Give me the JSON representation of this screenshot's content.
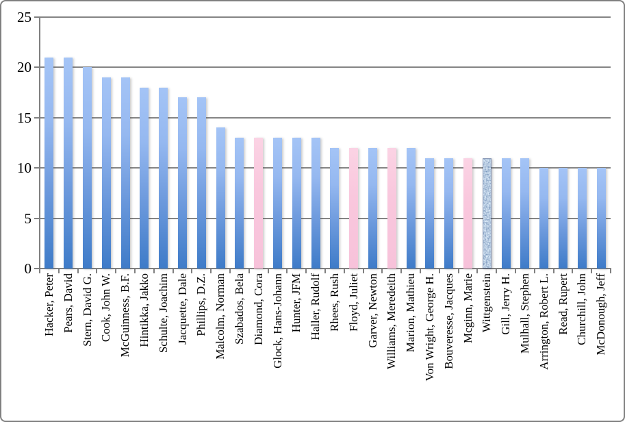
{
  "chart_data": {
    "type": "bar",
    "title": "",
    "xlabel": "",
    "ylabel": "",
    "ylim": [
      0,
      25
    ],
    "yticks": [
      0,
      5,
      10,
      15,
      20,
      25
    ],
    "grid": true,
    "legend": "none",
    "categories": [
      "Hacker, Peter",
      "Pears, David",
      "Stern, David G.",
      "Cook, John W.",
      "McGuinness, B.F.",
      "Hintikka, Jakko",
      "Schulte, Joachim",
      "Jacquette, Dale",
      "Phillips, D.Z.",
      "Malcolm, Norman",
      "Szabados, Bela",
      "Diamond, Cora",
      "Glock, Hans-Johann",
      "Hunter, JFM",
      "Haller, Rudolf",
      "Rhees, Rush",
      "Floyd, Juliet",
      "Garver, Newton",
      "Williams, Meredeith",
      "Marion, Mathieu",
      "Von Wright, George H.",
      "Bouveresse, Jacques",
      "Mcginn, Marie",
      "Wittgenstein",
      "Gill, Jerry H.",
      "Mulhall, Stephen",
      "Arrington, Robert L.",
      "Read, Rupert",
      "Churchill, John",
      "McDonough, Jeff"
    ],
    "values": [
      21,
      21,
      20,
      19,
      19,
      18,
      18,
      17,
      17,
      14,
      13,
      13,
      13,
      13,
      13,
      12,
      12,
      12,
      12,
      12,
      11,
      11,
      11,
      11,
      11,
      11,
      10,
      10,
      10,
      10
    ],
    "bar_styles": [
      "blue",
      "blue",
      "blue",
      "blue",
      "blue",
      "blue",
      "blue",
      "blue",
      "blue",
      "blue",
      "blue",
      "pink",
      "blue",
      "blue",
      "blue",
      "blue",
      "pink",
      "blue",
      "pink",
      "blue",
      "blue",
      "blue",
      "pink",
      "pattern",
      "blue",
      "blue",
      "blue",
      "blue",
      "blue",
      "blue"
    ],
    "colors": {
      "bar_gradient_top": "#a4c4f6",
      "bar_gradient_bottom": "#3e7bc8",
      "pink_bar": "#f9c7dd",
      "pattern_dark": "#1c3a6e",
      "pattern_light": "#c8d8ee",
      "gridline": "#848484",
      "axis": "#7f7f7f",
      "frame_border": "#7f7f7f",
      "background": "#ffffff"
    }
  }
}
